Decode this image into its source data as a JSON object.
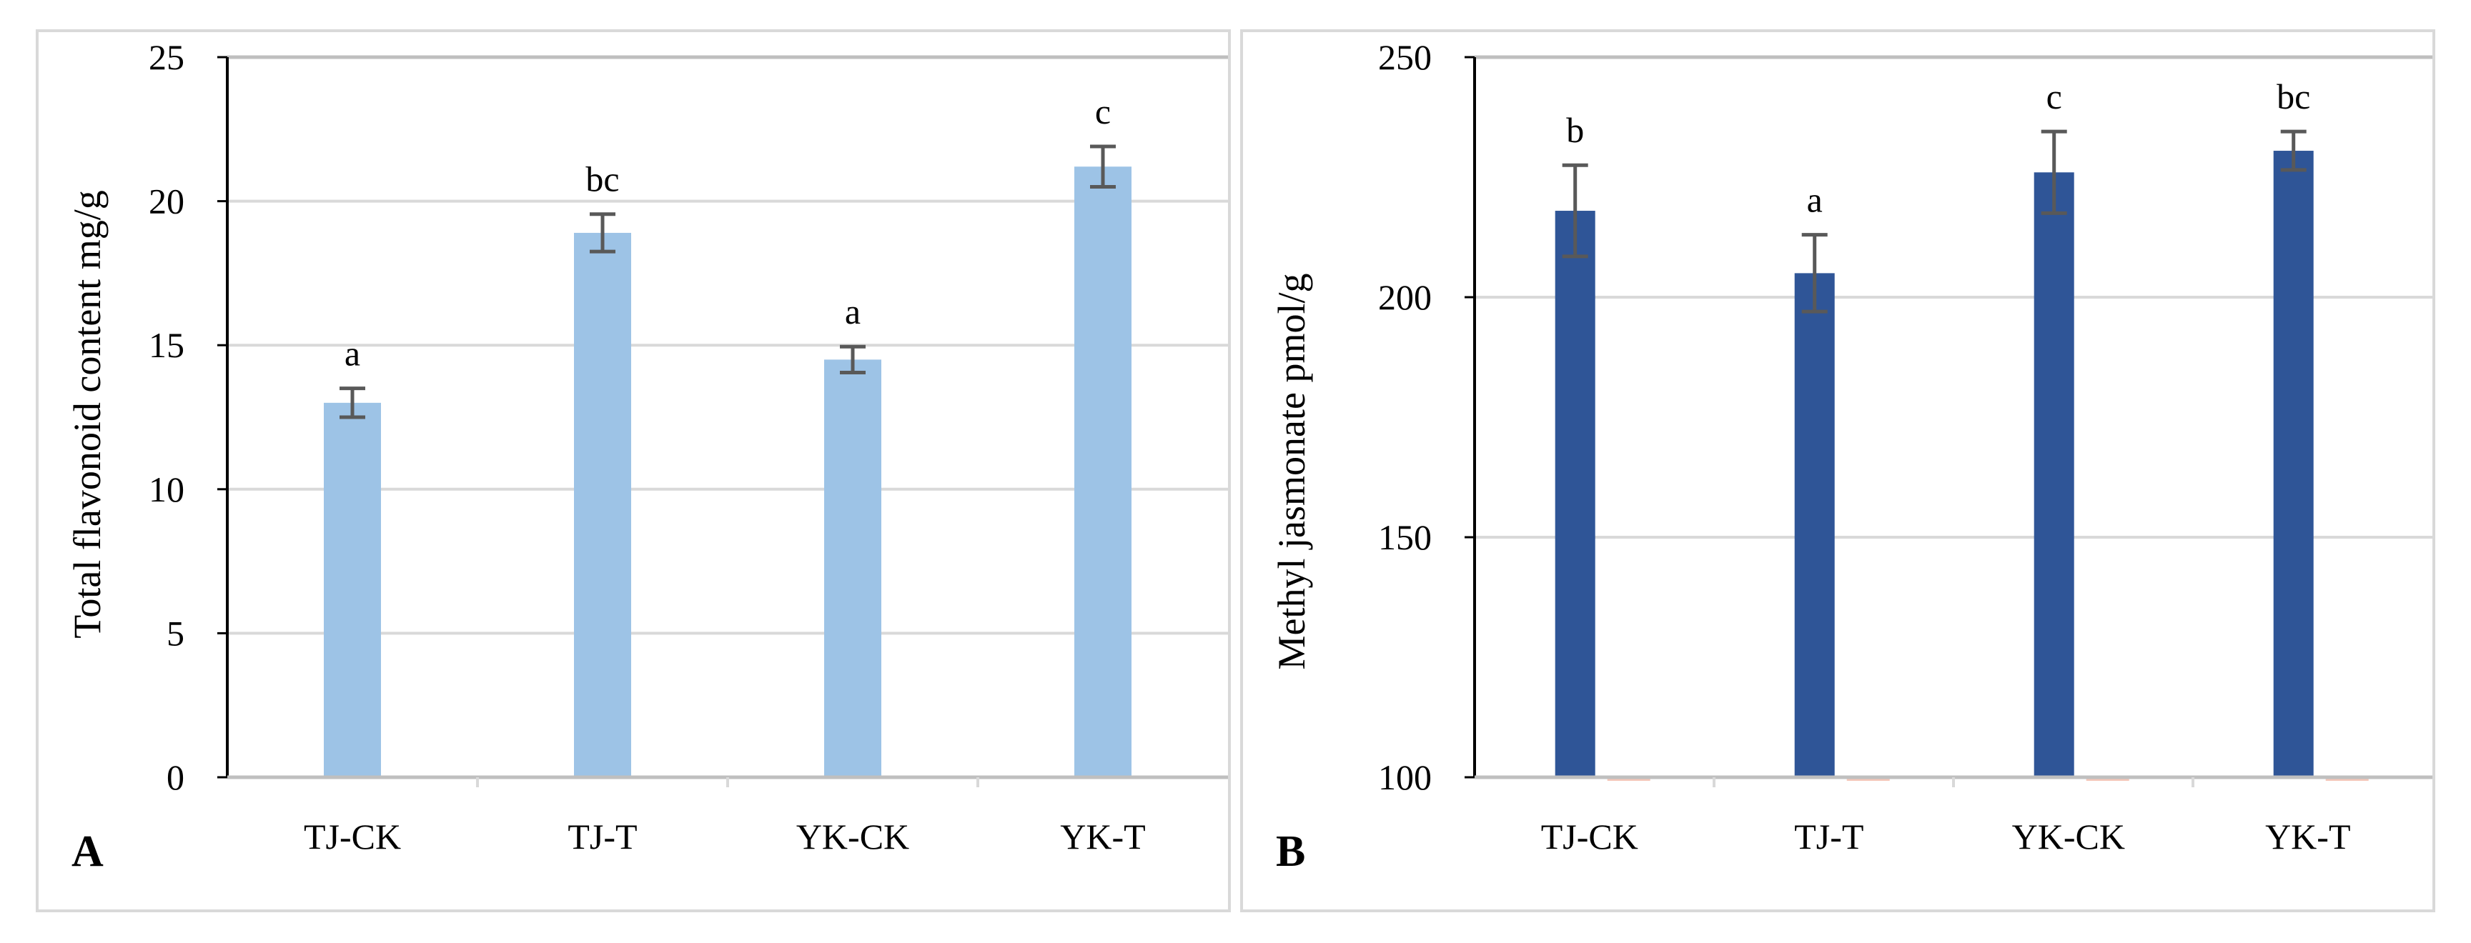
{
  "chart_data": [
    {
      "panel": "A",
      "type": "bar",
      "title": "",
      "xlabel": "",
      "ylabel": "Total flavonoid content mg/g",
      "categories": [
        "TJ-CK",
        "TJ-T",
        "YK-CK",
        "YK-T"
      ],
      "series": [
        {
          "name": "Total flavonoid content",
          "color": "#9dc3e6",
          "values": [
            13.0,
            18.9,
            14.5,
            21.2
          ],
          "errors": [
            0.5,
            0.65,
            0.45,
            0.7
          ],
          "significance": [
            "a",
            "bc",
            "a",
            "c"
          ]
        }
      ],
      "ylim": [
        0,
        25
      ],
      "yticks": [
        "0",
        "5",
        "10",
        "15",
        "20",
        "25"
      ],
      "grid": true
    },
    {
      "panel": "B",
      "type": "bar",
      "title": "",
      "xlabel": "",
      "ylabel": "Methyl jasmonate pmol/g",
      "categories": [
        "TJ-CK",
        "TJ-T",
        "YK-CK",
        "YK-T"
      ],
      "series": [
        {
          "name": "Methyl jasmonate",
          "color": "#2f5597",
          "values": [
            218,
            205,
            226,
            230.5
          ],
          "errors": [
            9.5,
            8,
            8.5,
            4
          ],
          "significance": [
            "b",
            "a",
            "c",
            "bc"
          ]
        }
      ],
      "ylim": [
        100,
        250
      ],
      "yticks": [
        "100",
        "150",
        "200",
        "250"
      ],
      "grid": true
    }
  ]
}
